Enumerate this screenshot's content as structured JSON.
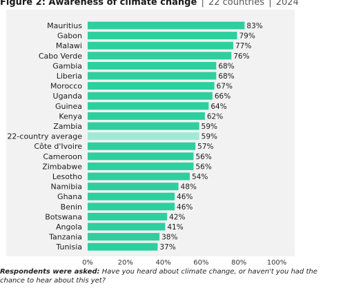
{
  "title": {
    "main": "Figure 2: Awareness of climate change",
    "sub1": "22 countries",
    "sub2": "2024",
    "separator": "|"
  },
  "footnote": {
    "lead": "Respondents were asked:",
    "text": "Have you heard about climate change, or haven't you had the chance to hear about this yet?"
  },
  "colors": {
    "bar": "#2ecf9e",
    "highlight": "#a3e8d6",
    "background": "#f2f2f2",
    "text": "#1a1a1a"
  },
  "chart_data": {
    "type": "bar",
    "orientation": "horizontal",
    "categories": [
      "Mauritius",
      "Gabon",
      "Malawi",
      "Cabo Verde",
      "Gambia",
      "Liberia",
      "Morocco",
      "Uganda",
      "Guinea",
      "Kenya",
      "Zambia",
      "22-country average",
      "Côte d'Ivoire",
      "Cameroon",
      "Zimbabwe",
      "Lesotho",
      "Namibia",
      "Ghana",
      "Benin",
      "Botswana",
      "Angola",
      "Tanzania",
      "Tunisia"
    ],
    "values": [
      83,
      79,
      77,
      76,
      68,
      68,
      67,
      66,
      64,
      62,
      59,
      59,
      57,
      56,
      56,
      54,
      48,
      46,
      46,
      42,
      41,
      38,
      37
    ],
    "value_labels": [
      "83%",
      "79%",
      "77%",
      "76%",
      "68%",
      "68%",
      "67%",
      "66%",
      "64%",
      "62%",
      "59%",
      "59%",
      "57%",
      "56%",
      "56%",
      "54%",
      "48%",
      "46%",
      "46%",
      "42%",
      "41%",
      "38%",
      "37%"
    ],
    "highlight_category": "22-country average",
    "xlim": [
      0,
      100
    ],
    "x_ticks": [
      0,
      20,
      40,
      60,
      80,
      100
    ],
    "x_tick_labels": [
      "0%",
      "20%",
      "40%",
      "60%",
      "80%",
      "100%"
    ],
    "grid": false,
    "legend": "none"
  }
}
